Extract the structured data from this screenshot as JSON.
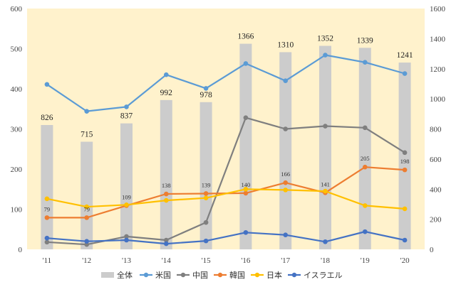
{
  "chart_data": {
    "type": "bar+line",
    "categories": [
      "'11",
      "'12",
      "'13",
      "'14",
      "'15",
      "'16",
      "'17",
      "'18",
      "'19",
      "'20"
    ],
    "bar_series": {
      "name": "全体",
      "axis": "right",
      "values": [
        826,
        715,
        837,
        992,
        978,
        1366,
        1310,
        1352,
        1339,
        1241
      ],
      "color": "#cccccc"
    },
    "series": [
      {
        "name": "米国",
        "axis": "left",
        "color": "#5b9bd5",
        "values": [
          411,
          344,
          355,
          435,
          401,
          463,
          420,
          484,
          466,
          438
        ]
      },
      {
        "name": "中国",
        "axis": "left",
        "color": "#7f7f7f",
        "values": [
          18,
          12,
          32,
          23,
          67,
          328,
          300,
          307,
          303,
          241
        ]
      },
      {
        "name": "韓国",
        "axis": "left",
        "color": "#ed7d31",
        "values": [
          79,
          79,
          109,
          138,
          139,
          140,
          166,
          141,
          205,
          198
        ]
      },
      {
        "name": "日本",
        "axis": "left",
        "color": "#ffc000",
        "values": [
          126,
          106,
          111,
          122,
          128,
          150,
          148,
          145,
          109,
          101
        ]
      },
      {
        "name": "イスラエル",
        "axis": "left",
        "color": "#4472c4",
        "values": [
          28,
          20,
          23,
          14,
          21,
          42,
          36,
          19,
          44,
          23
        ]
      }
    ],
    "left_axis": {
      "min": 0,
      "max": 600,
      "step": 100,
      "ticks": [
        "0",
        "100",
        "200",
        "300",
        "400",
        "500",
        "600"
      ]
    },
    "right_axis": {
      "min": 0,
      "max": 1600,
      "step": 200,
      "ticks": [
        "0",
        "200",
        "400",
        "600",
        "800",
        "1000",
        "1200",
        "1400",
        "1600"
      ]
    },
    "data_labels": {
      "bar": [
        "826",
        "715",
        "837",
        "992",
        "978",
        "1366",
        "1310",
        "1352",
        "1339",
        "1241"
      ],
      "韓国": [
        "79",
        "79",
        "109",
        "138",
        "139",
        "140",
        "166",
        "141",
        "205",
        "198"
      ]
    },
    "plot_background": "#fff2cc",
    "grid": false,
    "legend_position": "bottom",
    "title": "",
    "xlabel": "",
    "ylabel": ""
  }
}
